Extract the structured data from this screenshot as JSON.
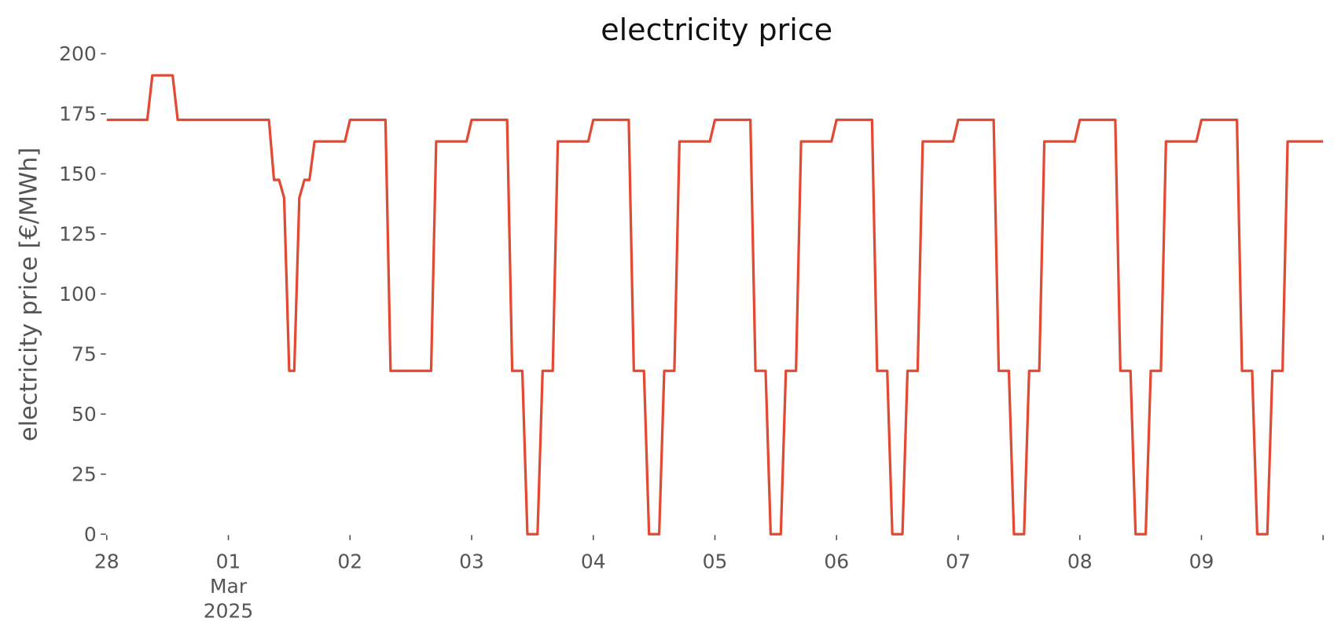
{
  "chart_data": {
    "type": "line",
    "title": "electricity price",
    "y_label": "electricity price [€/MWh]",
    "x": [
      "2025-02-28T00:00",
      "2025-02-28T08:00",
      "2025-02-28T09:00",
      "2025-02-28T13:00",
      "2025-02-28T14:00",
      "2025-03-01T08:00",
      "2025-03-01T09:00",
      "2025-03-01T10:00",
      "2025-03-01T11:00",
      "2025-03-01T12:00",
      "2025-03-01T13:00",
      "2025-03-01T14:00",
      "2025-03-01T15:00",
      "2025-03-01T16:00",
      "2025-03-01T17:00",
      "2025-03-01T23:00",
      "2025-03-02T00:00",
      "2025-03-02T07:00",
      "2025-03-02T08:00",
      "2025-03-02T16:00",
      "2025-03-02T17:00",
      "2025-03-02T23:00",
      "2025-03-03T00:00",
      "2025-03-03T07:00",
      "2025-03-03T08:00",
      "2025-03-03T10:00",
      "2025-03-03T11:00",
      "2025-03-03T13:00",
      "2025-03-03T14:00",
      "2025-03-03T16:00",
      "2025-03-03T17:00",
      "2025-03-03T23:00",
      "2025-03-04T00:00",
      "2025-03-04T07:00",
      "2025-03-04T08:00",
      "2025-03-04T10:00",
      "2025-03-04T11:00",
      "2025-03-04T13:00",
      "2025-03-04T14:00",
      "2025-03-04T16:00",
      "2025-03-04T17:00",
      "2025-03-04T23:00",
      "2025-03-05T00:00",
      "2025-03-05T07:00",
      "2025-03-05T08:00",
      "2025-03-05T10:00",
      "2025-03-05T11:00",
      "2025-03-05T13:00",
      "2025-03-05T14:00",
      "2025-03-05T16:00",
      "2025-03-05T17:00",
      "2025-03-05T23:00",
      "2025-03-06T00:00",
      "2025-03-06T07:00",
      "2025-03-06T08:00",
      "2025-03-06T10:00",
      "2025-03-06T11:00",
      "2025-03-06T13:00",
      "2025-03-06T14:00",
      "2025-03-06T16:00",
      "2025-03-06T17:00",
      "2025-03-06T23:00",
      "2025-03-07T00:00",
      "2025-03-07T07:00",
      "2025-03-07T08:00",
      "2025-03-07T10:00",
      "2025-03-07T11:00",
      "2025-03-07T13:00",
      "2025-03-07T14:00",
      "2025-03-07T16:00",
      "2025-03-07T17:00",
      "2025-03-07T23:00",
      "2025-03-08T00:00",
      "2025-03-08T07:00",
      "2025-03-08T08:00",
      "2025-03-08T10:00",
      "2025-03-08T11:00",
      "2025-03-08T13:00",
      "2025-03-08T14:00",
      "2025-03-08T16:00",
      "2025-03-08T17:00",
      "2025-03-08T23:00",
      "2025-03-09T00:00",
      "2025-03-09T07:00",
      "2025-03-09T08:00",
      "2025-03-09T10:00",
      "2025-03-09T11:00",
      "2025-03-09T13:00",
      "2025-03-09T14:00",
      "2025-03-09T16:00",
      "2025-03-09T17:00",
      "2025-03-09T23:00",
      "2025-03-10T00:00"
    ],
    "series": [
      {
        "color": "#e24a33",
        "values": [
          172.5,
          172.5,
          191,
          191,
          172.5,
          172.5,
          147.5,
          147.5,
          140,
          68,
          68,
          140,
          147.5,
          147.5,
          163.5,
          163.5,
          172.5,
          172.5,
          68,
          68,
          163.5,
          163.5,
          172.5,
          172.5,
          68,
          68,
          0,
          0,
          68,
          68,
          163.5,
          163.5,
          172.5,
          172.5,
          68,
          68,
          0,
          0,
          68,
          68,
          163.5,
          163.5,
          172.5,
          172.5,
          68,
          68,
          0,
          0,
          68,
          68,
          163.5,
          163.5,
          172.5,
          172.5,
          68,
          68,
          0,
          0,
          68,
          68,
          163.5,
          163.5,
          172.5,
          172.5,
          68,
          68,
          0,
          0,
          68,
          68,
          163.5,
          163.5,
          172.5,
          172.5,
          68,
          68,
          0,
          0,
          68,
          68,
          163.5,
          163.5,
          172.5,
          172.5,
          68,
          68,
          0,
          0,
          68,
          68,
          163.5,
          163.5,
          163.5
        ]
      }
    ],
    "xlim": [
      "2025-02-28T00:00",
      "2025-03-10T00:00"
    ],
    "xticks": [
      {
        "value": "2025-02-28T00:00",
        "label": "28"
      },
      {
        "value": "2025-03-01T00:00",
        "label": "01\nMar\n2025"
      },
      {
        "value": "2025-03-02T00:00",
        "label": "02"
      },
      {
        "value": "2025-03-03T00:00",
        "label": "03"
      },
      {
        "value": "2025-03-04T00:00",
        "label": "04"
      },
      {
        "value": "2025-03-05T00:00",
        "label": "05"
      },
      {
        "value": "2025-03-06T00:00",
        "label": "06"
      },
      {
        "value": "2025-03-07T00:00",
        "label": "07"
      },
      {
        "value": "2025-03-08T00:00",
        "label": "08"
      },
      {
        "value": "2025-03-09T00:00",
        "label": "09"
      },
      {
        "value": "2025-03-10T00:00",
        "label": null
      }
    ],
    "ylim": [
      0,
      200
    ],
    "yticks": [
      0,
      25,
      50,
      75,
      100,
      125,
      150,
      175,
      200
    ],
    "grid": false
  }
}
